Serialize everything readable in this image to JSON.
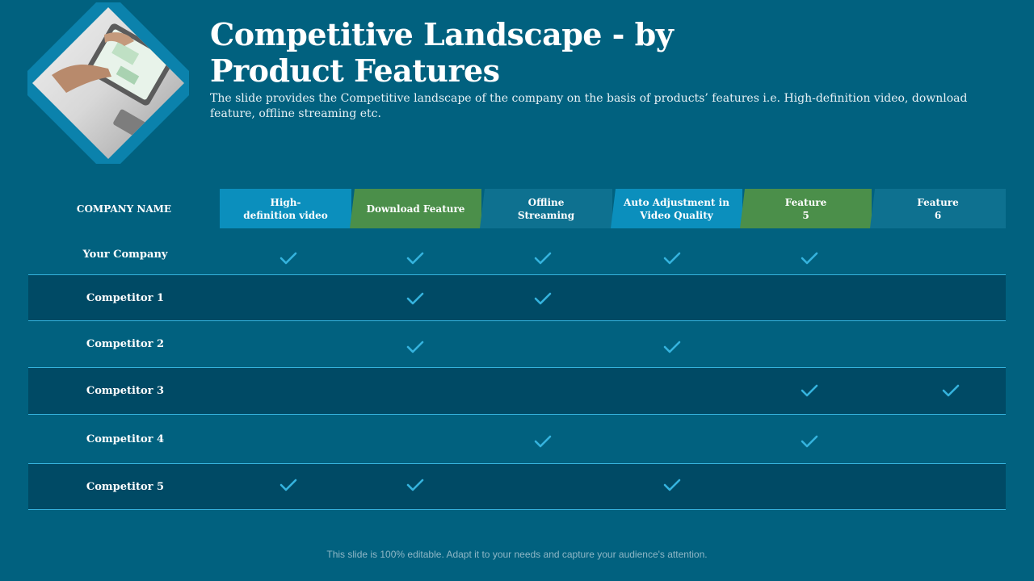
{
  "slide": {
    "title_line1": "Competitive Landscape - by",
    "title_line2": "Product Features",
    "subtitle": "The slide provides the Competitive landscape of the company on the basis of products’ features i.e. High-definition video, download feature, offline streaming etc.",
    "footer": "This slide is 100% editable. Adapt it to your needs and capture your audience's attention."
  },
  "table": {
    "company_header": "COMPANY NAME",
    "features": [
      {
        "line1": "High-",
        "line2": "definition video",
        "color": "#0b8fbd"
      },
      {
        "line1": "Download  Feature",
        "line2": "",
        "color": "#4b8f4a"
      },
      {
        "line1": "Offline",
        "line2": "Streaming",
        "color": "#0e7190"
      },
      {
        "line1": "Auto Adjustment in",
        "line2": "Video Quality",
        "color": "#0b8fbd"
      },
      {
        "line1": "Feature",
        "line2": "5",
        "color": "#4b8f4a"
      },
      {
        "line1": "Feature",
        "line2": "6",
        "color": "#0e7190"
      }
    ],
    "rows": [
      {
        "name": "Your Company",
        "checks": [
          true,
          true,
          true,
          true,
          true,
          false
        ]
      },
      {
        "name": "Competitor 1",
        "checks": [
          false,
          true,
          true,
          false,
          false,
          false
        ]
      },
      {
        "name": "Competitor 2",
        "checks": [
          false,
          true,
          false,
          true,
          false,
          false
        ]
      },
      {
        "name": "Competitor 3",
        "checks": [
          false,
          false,
          false,
          false,
          true,
          true
        ]
      },
      {
        "name": "Competitor 4",
        "checks": [
          false,
          false,
          true,
          false,
          true,
          false
        ]
      },
      {
        "name": "Competitor 5",
        "checks": [
          true,
          true,
          false,
          true,
          false,
          false
        ]
      }
    ]
  },
  "colors": {
    "background": "#01617f",
    "dark_row": "#004a65",
    "divider": "#35b3de",
    "check": "#35b3de"
  },
  "icons": {
    "check": "checkmark-icon",
    "photo": "tablet-photo-image"
  }
}
